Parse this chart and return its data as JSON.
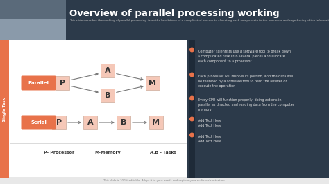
{
  "title": "Overview of parallel processing working",
  "subtitle": "This slide describes the working of parallel processing, from the breakdown of a complicated process to allocating each components to the processor and regathering of the information. It also shows how serial processing works in a sequential manner.",
  "bg_color": "#f0f0f0",
  "header_bg": "#2c3a4a",
  "img_bg": "#5a6a7a",
  "img_bg2": "#8a9aaa",
  "left_bar_color": "#e8724a",
  "node_bg": "#f5c8b8",
  "label_bg": "#e8724a",
  "right_panel_bg": "#2c3a4a",
  "vbar_bg": "#1e2a38",
  "bullet_color": "#e8724a",
  "parallel_label": "Parallel",
  "serial_label": "Serial",
  "single_task_label": "Single Task",
  "p_label": "P- Processor",
  "m_label": "M-Memory",
  "ab_label": "A,B - Tasks",
  "footer": "This slide is 100% editable. Adapt it to your needs and capture your audience's attention.",
  "bullet_texts": [
    "Computer scientists use a software tool to break down\na complicated task into several pieces and allocate\neach component to a processor",
    "Each processor will resolve its portion, and the data will\nbe reunited by a software tool to read the answer or\nexecute the operation",
    "Every CPU will function properly, doing actions in\nparallel as directed and reading data from the computer\nmemory",
    "Add Text Here\nAdd Text Here",
    "Add Text Here\nAdd Text Here"
  ],
  "arrow_color": "#777777",
  "diagram_area_bg": "#ffffff",
  "white_content_bg": "#f8f8f8"
}
